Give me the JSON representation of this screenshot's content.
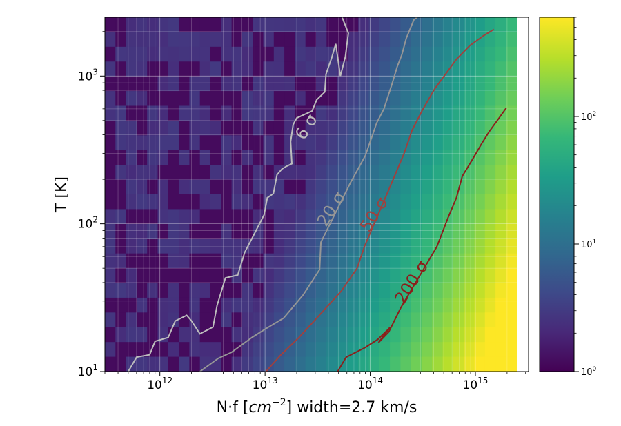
{
  "chart_data": {
    "type": "heatmap",
    "title": "",
    "xlabel": "N·f [cm^-2] width=2.7 km/s",
    "xlabel_parts": {
      "prefix": "N·f [",
      "italic": "cm",
      "sup": "−2",
      "suffix": "] width=2.7 km/s"
    },
    "ylabel": "T [K]",
    "x_scale": "log",
    "y_scale": "log",
    "xlim": [
      300000000000.0,
      3200000000000000.0
    ],
    "ylim": [
      10,
      2500
    ],
    "x_ticks": [
      {
        "value": 1000000000000.0,
        "base": "10",
        "exp": "12"
      },
      {
        "value": 10000000000000.0,
        "base": "10",
        "exp": "13"
      },
      {
        "value": 100000000000000.0,
        "base": "10",
        "exp": "14"
      },
      {
        "value": 1000000000000000.0,
        "base": "10",
        "exp": "15"
      }
    ],
    "y_ticks": [
      {
        "value": 10,
        "base": "10",
        "exp": "1"
      },
      {
        "value": 100,
        "base": "10",
        "exp": "2"
      },
      {
        "value": 1000,
        "base": "10",
        "exp": "3"
      }
    ],
    "colormap": "viridis",
    "colorbar": {
      "scale": "log",
      "range": [
        1,
        600
      ],
      "ticks": [
        {
          "value": 1,
          "base": "10",
          "exp": "0"
        },
        {
          "value": 10,
          "base": "10",
          "exp": "1"
        },
        {
          "value": 100,
          "base": "10",
          "exp": "2"
        }
      ]
    },
    "grid": true,
    "contours": [
      {
        "label": "6 σ",
        "level": 6,
        "color": "#bdbdbd",
        "label_at": [
          25000000000000.0,
          450
        ],
        "label_angle": -58,
        "points": [
          [
            500000000000.0,
            10
          ],
          [
            600000000000.0,
            12.5
          ],
          [
            800000000000.0,
            13
          ],
          [
            900000000000.0,
            16
          ],
          [
            1200000000000.0,
            17
          ],
          [
            1400000000000.0,
            22
          ],
          [
            1800000000000.0,
            24
          ],
          [
            2000000000000.0,
            22
          ],
          [
            2400000000000.0,
            18
          ],
          [
            3200000000000.0,
            20
          ],
          [
            3500000000000.0,
            28
          ],
          [
            4200000000000.0,
            43
          ],
          [
            5500000000000.0,
            45
          ],
          [
            6400000000000.0,
            64
          ],
          [
            7600000000000.0,
            81
          ],
          [
            9800000000000.0,
            115
          ],
          [
            10500000000000.0,
            150
          ],
          [
            12000000000000.0,
            160
          ],
          [
            13000000000000.0,
            215
          ],
          [
            14500000000000.0,
            235
          ],
          [
            16000000000000.0,
            245
          ],
          [
            18000000000000.0,
            255
          ],
          [
            17500000000000.0,
            360
          ],
          [
            18500000000000.0,
            470
          ],
          [
            20000000000000.0,
            520
          ],
          [
            28000000000000.0,
            580
          ],
          [
            31000000000000.0,
            690
          ],
          [
            37000000000000.0,
            780
          ],
          [
            38000000000000.0,
            1030
          ],
          [
            43000000000000.0,
            1330
          ],
          [
            47000000000000.0,
            1650
          ],
          [
            52000000000000.0,
            1000
          ],
          [
            58000000000000.0,
            1350
          ],
          [
            62000000000000.0,
            1950
          ],
          [
            54000000000000.0,
            2500
          ]
        ]
      },
      {
        "label": "20 σ",
        "level": 20,
        "color": "#969696",
        "label_at": [
          43000000000000.0,
          125
        ],
        "label_angle": -58,
        "points": [
          [
            2400000000000.0,
            10
          ],
          [
            3600000000000.0,
            12.3
          ],
          [
            4800000000000.0,
            13.5
          ],
          [
            7500000000000.0,
            17
          ],
          [
            10200000000000.0,
            19.5
          ],
          [
            15000000000000.0,
            23
          ],
          [
            23000000000000.0,
            33
          ],
          [
            33000000000000.0,
            49
          ],
          [
            34000000000000.0,
            75
          ],
          [
            65000000000000.0,
            190
          ],
          [
            90000000000000.0,
            290
          ],
          [
            115000000000000.0,
            480
          ],
          [
            135000000000000.0,
            600
          ],
          [
            160000000000000.0,
            870
          ],
          [
            180000000000000.0,
            1150
          ],
          [
            200000000000000.0,
            1400
          ],
          [
            220000000000000.0,
            1800
          ],
          [
            260000000000000.0,
            2400
          ],
          [
            280000000000000.0,
            2500
          ]
        ]
      },
      {
        "label": "50 σ",
        "level": 50,
        "color": "#a0403d",
        "label_at": [
          110000000000000.0,
          115
        ],
        "label_angle": -58,
        "points": [
          [
            10200000000000.0,
            10
          ],
          [
            14200000000000.0,
            13
          ],
          [
            21000000000000.0,
            17
          ],
          [
            31000000000000.0,
            23
          ],
          [
            53000000000000.0,
            35
          ],
          [
            75000000000000.0,
            50
          ],
          [
            88000000000000.0,
            70
          ],
          [
            150000000000000.0,
            170
          ],
          [
            210000000000000.0,
            300
          ],
          [
            250000000000000.0,
            430
          ],
          [
            310000000000000.0,
            580
          ],
          [
            410000000000000.0,
            820
          ],
          [
            530000000000000.0,
            1050
          ],
          [
            660000000000000.0,
            1300
          ],
          [
            880000000000000.0,
            1600
          ],
          [
            1200000000000000.0,
            1880
          ],
          [
            1500000000000000.0,
            2070
          ]
        ]
      },
      {
        "label": "200 σ",
        "level": 200,
        "color": "#8b1e1a",
        "label_at": [
          250000000000000.0,
          40
        ],
        "label_angle": -58,
        "points": [
          [
            49000000000000.0,
            10
          ],
          [
            59000000000000.0,
            12.5
          ],
          [
            89000000000000.0,
            14.5
          ],
          [
            118000000000000.0,
            16.5
          ],
          [
            145000000000000.0,
            19
          ],
          [
            155000000000000.0,
            20
          ],
          [
            120000000000000.0,
            15.7
          ],
          [
            150000000000000.0,
            18.5
          ],
          [
            195000000000000.0,
            27
          ],
          [
            430000000000000.0,
            70
          ],
          [
            550000000000000.0,
            110
          ],
          [
            660000000000000.0,
            150
          ],
          [
            750000000000000.0,
            210
          ],
          [
            930000000000000.0,
            270
          ],
          [
            1150000000000000.0,
            350
          ],
          [
            1350000000000000.0,
            420
          ],
          [
            1680000000000000.0,
            520
          ],
          [
            1970000000000000.0,
            610
          ]
        ]
      }
    ]
  }
}
